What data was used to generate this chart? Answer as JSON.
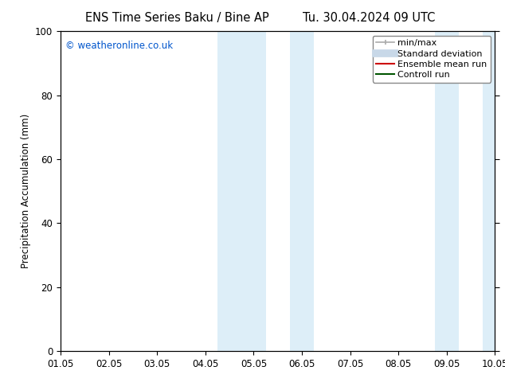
{
  "title_left": "ENS Time Series Baku / Bine AP",
  "title_right": "Tu. 30.04.2024 09 UTC",
  "ylabel": "Precipitation Accumulation (mm)",
  "xlim": [
    0,
    9
  ],
  "ylim": [
    0,
    100
  ],
  "yticks": [
    0,
    20,
    40,
    60,
    80,
    100
  ],
  "xtick_positions": [
    0,
    1,
    2,
    3,
    4,
    5,
    6,
    7,
    8,
    9
  ],
  "xtick_labels": [
    "01.05",
    "02.05",
    "03.05",
    "04.05",
    "05.05",
    "06.05",
    "07.05",
    "08.05",
    "09.05",
    "10.05"
  ],
  "shaded_regions": [
    {
      "x_start": 3.25,
      "x_end": 4.25
    },
    {
      "x_start": 4.75,
      "x_end": 5.25
    },
    {
      "x_start": 7.75,
      "x_end": 8.25
    },
    {
      "x_start": 8.75,
      "x_end": 9.0
    }
  ],
  "shaded_color": "#ddeef8",
  "watermark_text": "© weatheronline.co.uk",
  "watermark_color": "#0055cc",
  "legend_items": [
    {
      "label": "min/max",
      "color": "#aaaaaa",
      "lw": 1.2,
      "style": "solid"
    },
    {
      "label": "Standard deviation",
      "color": "#c8d8e8",
      "lw": 7,
      "style": "solid"
    },
    {
      "label": "Ensemble mean run",
      "color": "#cc0000",
      "lw": 1.5,
      "style": "solid"
    },
    {
      "label": "Controll run",
      "color": "#005500",
      "lw": 1.5,
      "style": "solid"
    }
  ],
  "background_color": "#ffffff",
  "title_fontsize": 10.5,
  "axis_label_fontsize": 8.5,
  "tick_fontsize": 8.5,
  "watermark_fontsize": 8.5,
  "legend_fontsize": 8
}
